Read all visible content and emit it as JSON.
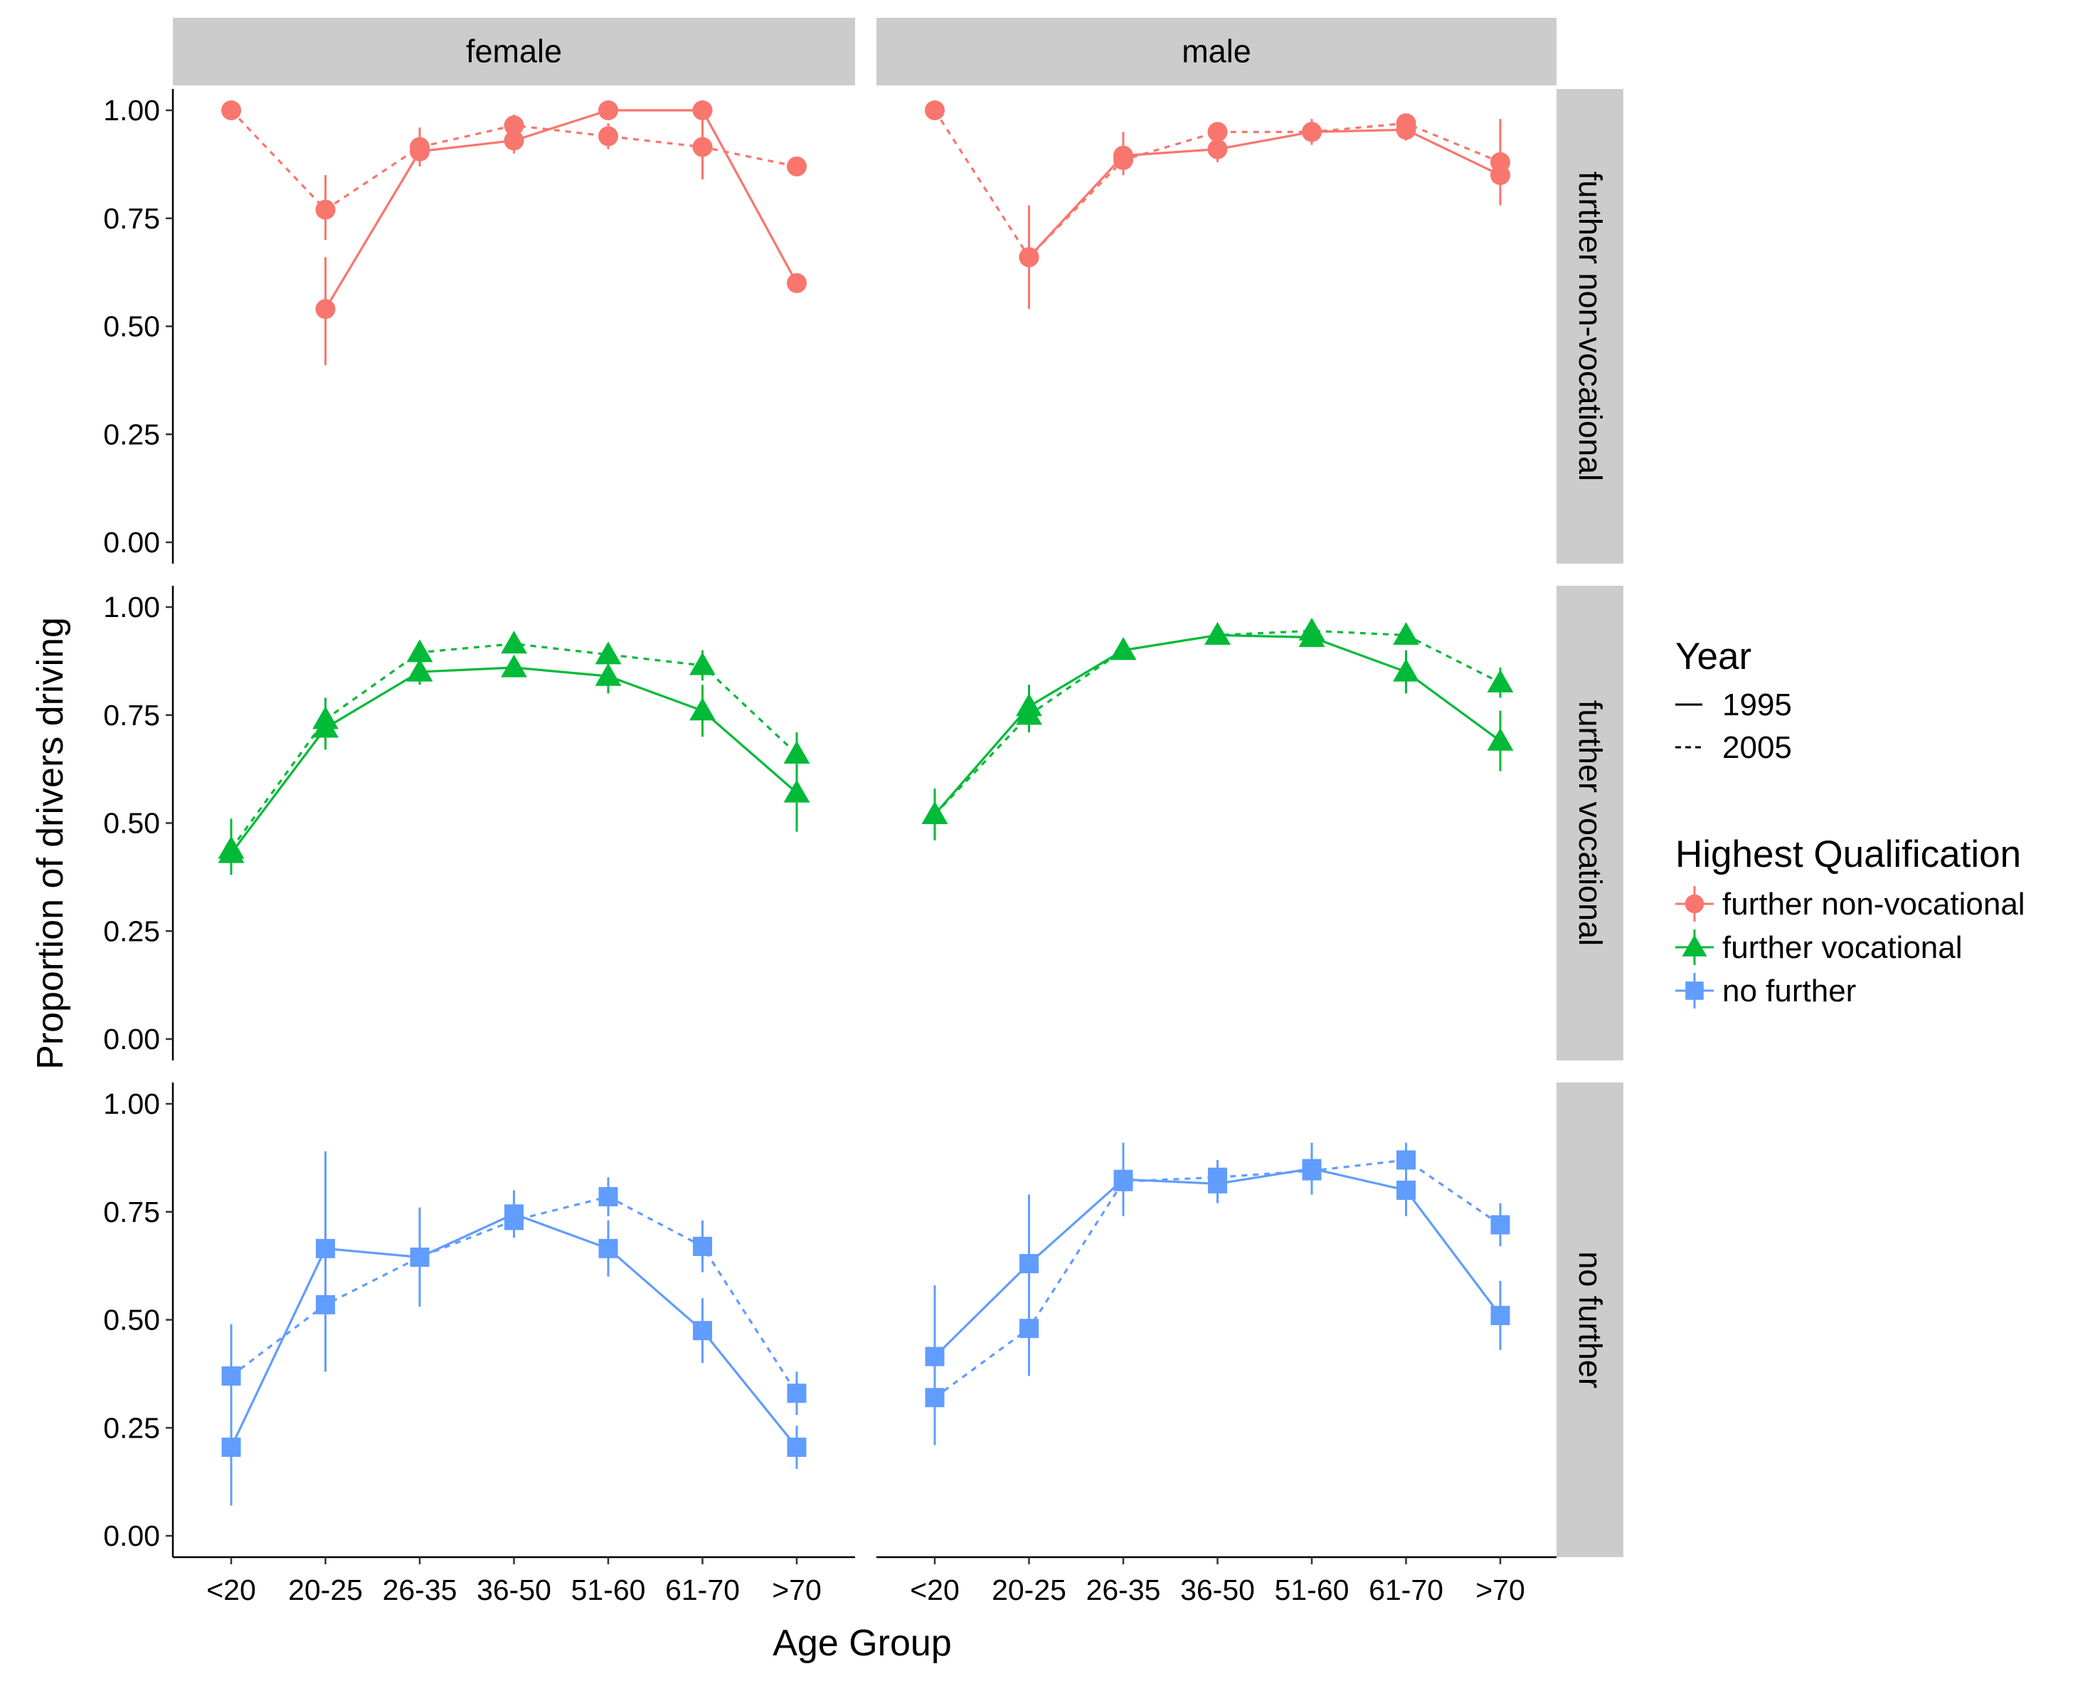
{
  "chart_data": {
    "type": "line",
    "xlabel": "Age Group",
    "ylabel": "Proportion of drivers driving",
    "categories": [
      "<20",
      "20-25",
      "26-35",
      "36-50",
      "51-60",
      "61-70",
      ">70"
    ],
    "ylim": [
      0,
      1
    ],
    "yticks": [
      "0.00",
      "0.25",
      "0.50",
      "0.75",
      "1.00"
    ],
    "grid": false,
    "legend_position": "right",
    "facet_columns": [
      "female",
      "male"
    ],
    "facet_rows": [
      "further non-vocational",
      "further vocational",
      "no further"
    ],
    "legend": {
      "linetype_title": "Year",
      "linetypes": [
        {
          "label": "1995",
          "dash": "solid"
        },
        {
          "label": "2005",
          "dash": "dashed"
        }
      ],
      "color_title": "Highest Qualification",
      "groups": [
        {
          "label": "further non-vocational",
          "color": "#F8766D",
          "shape": "circle"
        },
        {
          "label": "further vocational",
          "color": "#00BA38",
          "shape": "triangle"
        },
        {
          "label": "no further",
          "color": "#619CFF",
          "shape": "square"
        }
      ]
    },
    "panels": [
      {
        "col": "female",
        "row": "further non-vocational",
        "series": [
          {
            "year": "1995",
            "values": [
              null,
              0.54,
              0.905,
              0.93,
              1.0,
              1.0,
              0.6
            ],
            "lo": [
              null,
              0.41,
              0.87,
              0.9,
              null,
              null,
              null
            ],
            "hi": [
              null,
              0.66,
              0.94,
              0.96,
              null,
              null,
              null
            ]
          },
          {
            "year": "2005",
            "values": [
              1.0,
              0.77,
              0.915,
              0.965,
              0.94,
              0.915,
              0.87
            ],
            "lo": [
              null,
              0.7,
              0.88,
              0.94,
              0.91,
              0.84,
              null
            ],
            "hi": [
              null,
              0.85,
              0.96,
              0.99,
              0.97,
              0.99,
              null
            ]
          }
        ]
      },
      {
        "col": "male",
        "row": "further non-vocational",
        "series": [
          {
            "year": "1995",
            "values": [
              null,
              0.66,
              0.895,
              0.91,
              0.95,
              0.955,
              0.85
            ],
            "lo": [
              null,
              0.54,
              0.85,
              0.88,
              0.92,
              0.93,
              0.78
            ],
            "hi": [
              null,
              0.78,
              0.95,
              0.94,
              0.98,
              0.98,
              0.98
            ]
          },
          {
            "year": "2005",
            "values": [
              1.0,
              0.66,
              0.885,
              0.95,
              0.95,
              0.97,
              0.88
            ],
            "lo": [
              null,
              0.62,
              0.85,
              0.93,
              0.93,
              0.95,
              0.84
            ],
            "hi": [
              null,
              0.7,
              0.92,
              0.97,
              0.97,
              0.99,
              0.92
            ]
          }
        ]
      },
      {
        "col": "female",
        "row": "further vocational",
        "series": [
          {
            "year": "1995",
            "values": [
              0.43,
              0.72,
              0.85,
              0.86,
              0.84,
              0.76,
              0.57
            ],
            "lo": [
              0.38,
              0.67,
              0.82,
              0.84,
              0.8,
              0.7,
              0.48
            ],
            "hi": [
              0.48,
              0.77,
              0.88,
              0.88,
              0.88,
              0.82,
              0.66
            ]
          },
          {
            "year": "2005",
            "values": [
              0.44,
              0.74,
              0.895,
              0.915,
              0.89,
              0.865,
              0.66
            ],
            "lo": [
              0.39,
              0.7,
              0.87,
              0.9,
              0.87,
              0.83,
              0.61
            ],
            "hi": [
              0.51,
              0.79,
              0.92,
              0.935,
              0.915,
              0.9,
              0.71
            ]
          }
        ]
      },
      {
        "col": "male",
        "row": "further vocational",
        "series": [
          {
            "year": "1995",
            "values": [
              0.52,
              0.77,
              0.9,
              0.935,
              0.93,
              0.85,
              0.69
            ],
            "lo": [
              0.46,
              0.73,
              0.88,
              0.92,
              0.91,
              0.8,
              0.62
            ],
            "hi": [
              0.58,
              0.82,
              0.92,
              0.95,
              0.95,
              0.9,
              0.76
            ]
          },
          {
            "year": "2005",
            "values": [
              0.52,
              0.75,
              0.9,
              0.935,
              0.945,
              0.935,
              0.825
            ],
            "lo": [
              0.47,
              0.71,
              0.88,
              0.92,
              0.93,
              0.92,
              0.79
            ],
            "hi": [
              0.57,
              0.79,
              0.92,
              0.95,
              0.96,
              0.95,
              0.86
            ]
          }
        ]
      },
      {
        "col": "female",
        "row": "no further",
        "series": [
          {
            "year": "1995",
            "values": [
              0.205,
              0.665,
              0.645,
              0.745,
              0.665,
              0.475,
              0.205
            ],
            "lo": [
              0.07,
              0.44,
              0.53,
              0.69,
              0.6,
              0.4,
              0.155
            ],
            "hi": [
              0.34,
              0.89,
              0.76,
              0.8,
              0.73,
              0.55,
              0.255
            ]
          },
          {
            "year": "2005",
            "values": [
              0.37,
              0.535,
              0.645,
              0.73,
              0.785,
              0.67,
              0.33
            ],
            "lo": [
              0.25,
              0.38,
              0.6,
              0.69,
              0.74,
              0.61,
              0.28
            ],
            "hi": [
              0.49,
              0.69,
              0.69,
              0.77,
              0.83,
              0.73,
              0.38
            ]
          }
        ]
      },
      {
        "col": "male",
        "row": "no further",
        "series": [
          {
            "year": "1995",
            "values": [
              0.415,
              0.63,
              0.825,
              0.815,
              0.85,
              0.8,
              0.51
            ],
            "lo": [
              0.25,
              0.47,
              0.74,
              0.77,
              0.79,
              0.74,
              0.43
            ],
            "hi": [
              0.58,
              0.79,
              0.91,
              0.86,
              0.91,
              0.86,
              0.59
            ]
          },
          {
            "year": "2005",
            "values": [
              0.32,
              0.48,
              0.82,
              0.83,
              0.845,
              0.87,
              0.72
            ],
            "lo": [
              0.21,
              0.37,
              0.78,
              0.79,
              0.8,
              0.83,
              0.67
            ],
            "hi": [
              0.43,
              0.59,
              0.86,
              0.87,
              0.89,
              0.91,
              0.77
            ]
          }
        ]
      }
    ]
  }
}
